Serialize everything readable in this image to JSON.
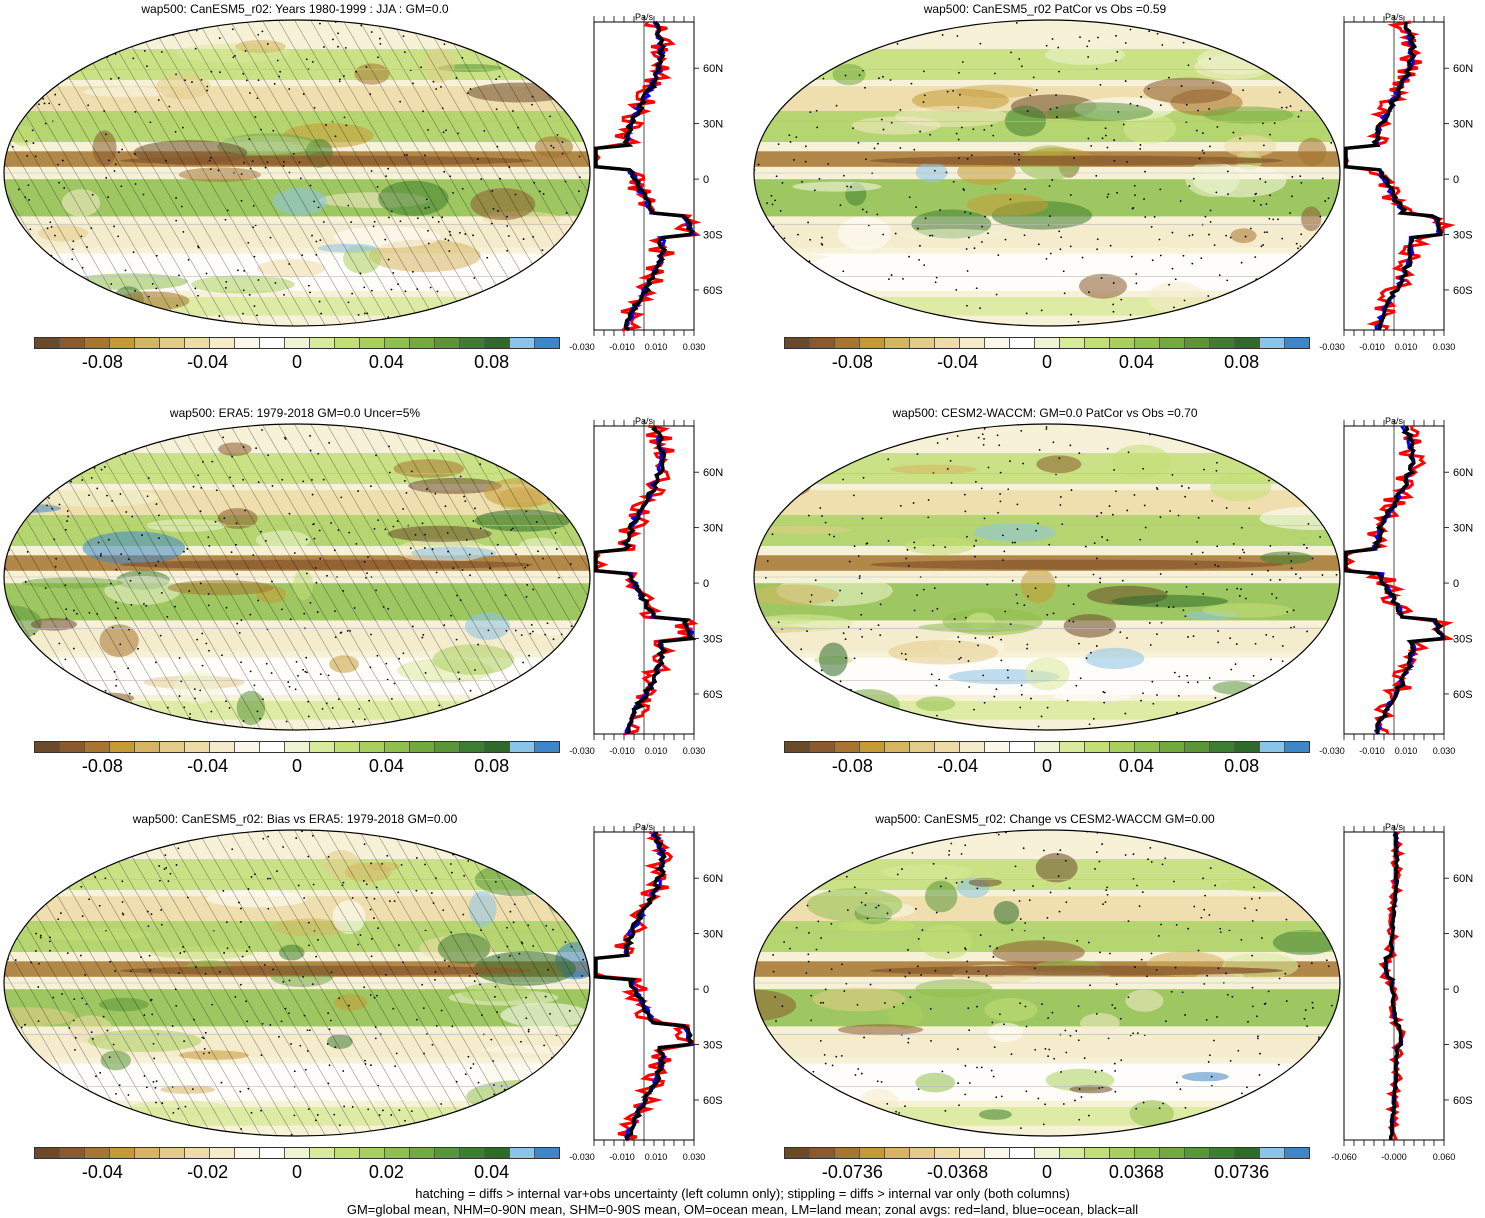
{
  "palette": [
    "#6b4a2a",
    "#8a5a2e",
    "#a6752f",
    "#c49a36",
    "#d5b562",
    "#e3cc8a",
    "#eddca8",
    "#f5ebcb",
    "#fbf7ea",
    "#ffffff",
    "#eef4d4",
    "#d8ea9c",
    "#c2df77",
    "#a9d05e",
    "#8fbf4c",
    "#73aa40",
    "#5a9638",
    "#3f7e32",
    "#2e6b2a",
    "#8cc3e8",
    "#3e86c8"
  ],
  "zonal_colors": {
    "land": "#ff0000",
    "ocean": "#0000ff",
    "all": "#000000"
  },
  "units": "Pa/s",
  "lat_labels": [
    "60N",
    "30N",
    "0",
    "30S",
    "60S"
  ],
  "panels": [
    {
      "id": "p1",
      "title": "wap500: CanESM5_r02: Years 1980-1999 : JJA : GM=0.0",
      "hatch": true,
      "colorbar_labels": [
        "-0.08",
        "-0.04",
        "0",
        "0.04",
        "0.08"
      ],
      "zonal_ticks": [
        "-0.030",
        "-0.010",
        "0.010",
        "0.030"
      ]
    },
    {
      "id": "p2",
      "title": "wap500: CanESM5_r02 PatCor vs Obs =0.59",
      "hatch": false,
      "colorbar_labels": [
        "-0.08",
        "-0.04",
        "0",
        "0.04",
        "0.08"
      ],
      "zonal_ticks": [
        "-0.030",
        "-0.010",
        "0.010",
        "0.030"
      ]
    },
    {
      "id": "p3",
      "title": "wap500: ERA5: 1979-2018 GM=0.0 Uncer=5%",
      "hatch": true,
      "colorbar_labels": [
        "-0.08",
        "-0.04",
        "0",
        "0.04",
        "0.08"
      ],
      "zonal_ticks": [
        "-0.030",
        "-0.010",
        "0.010",
        "0.030"
      ]
    },
    {
      "id": "p4",
      "title": "wap500: CESM2-WACCM: GM=0.0 PatCor vs Obs =0.70",
      "hatch": false,
      "colorbar_labels": [
        "-0.08",
        "-0.04",
        "0",
        "0.04",
        "0.08"
      ],
      "zonal_ticks": [
        "-0.030",
        "-0.010",
        "0.010",
        "0.030"
      ]
    },
    {
      "id": "p5",
      "title": "wap500: CanESM5_r02: Bias vs ERA5: 1979-2018 GM=0.00",
      "hatch": true,
      "colorbar_labels": [
        "-0.04",
        "-0.02",
        "0",
        "0.02",
        "0.04"
      ],
      "zonal_ticks": [
        "-0.030",
        "-0.010",
        "0.010",
        "0.030"
      ]
    },
    {
      "id": "p6",
      "title": "wap500: CanESM5_r02: Change vs CESM2-WACCM GM=0.00",
      "hatch": false,
      "colorbar_labels": [
        "-0.0736",
        "-0.0368",
        "0",
        "0.0368",
        "0.0736"
      ],
      "zonal_ticks": [
        "-0.060",
        "-0.000",
        "0.060"
      ]
    }
  ],
  "footer": {
    "line1": "hatching = diffs > internal var+obs uncertainty (left column only); stippling = diffs > internal var only (both columns)",
    "line2": "GM=global mean, NHM=0-90N mean, SHM=0-90S mean, OM=ocean mean, LM=land mean; zonal avgs: red=land, blue=ocean, black=all"
  }
}
